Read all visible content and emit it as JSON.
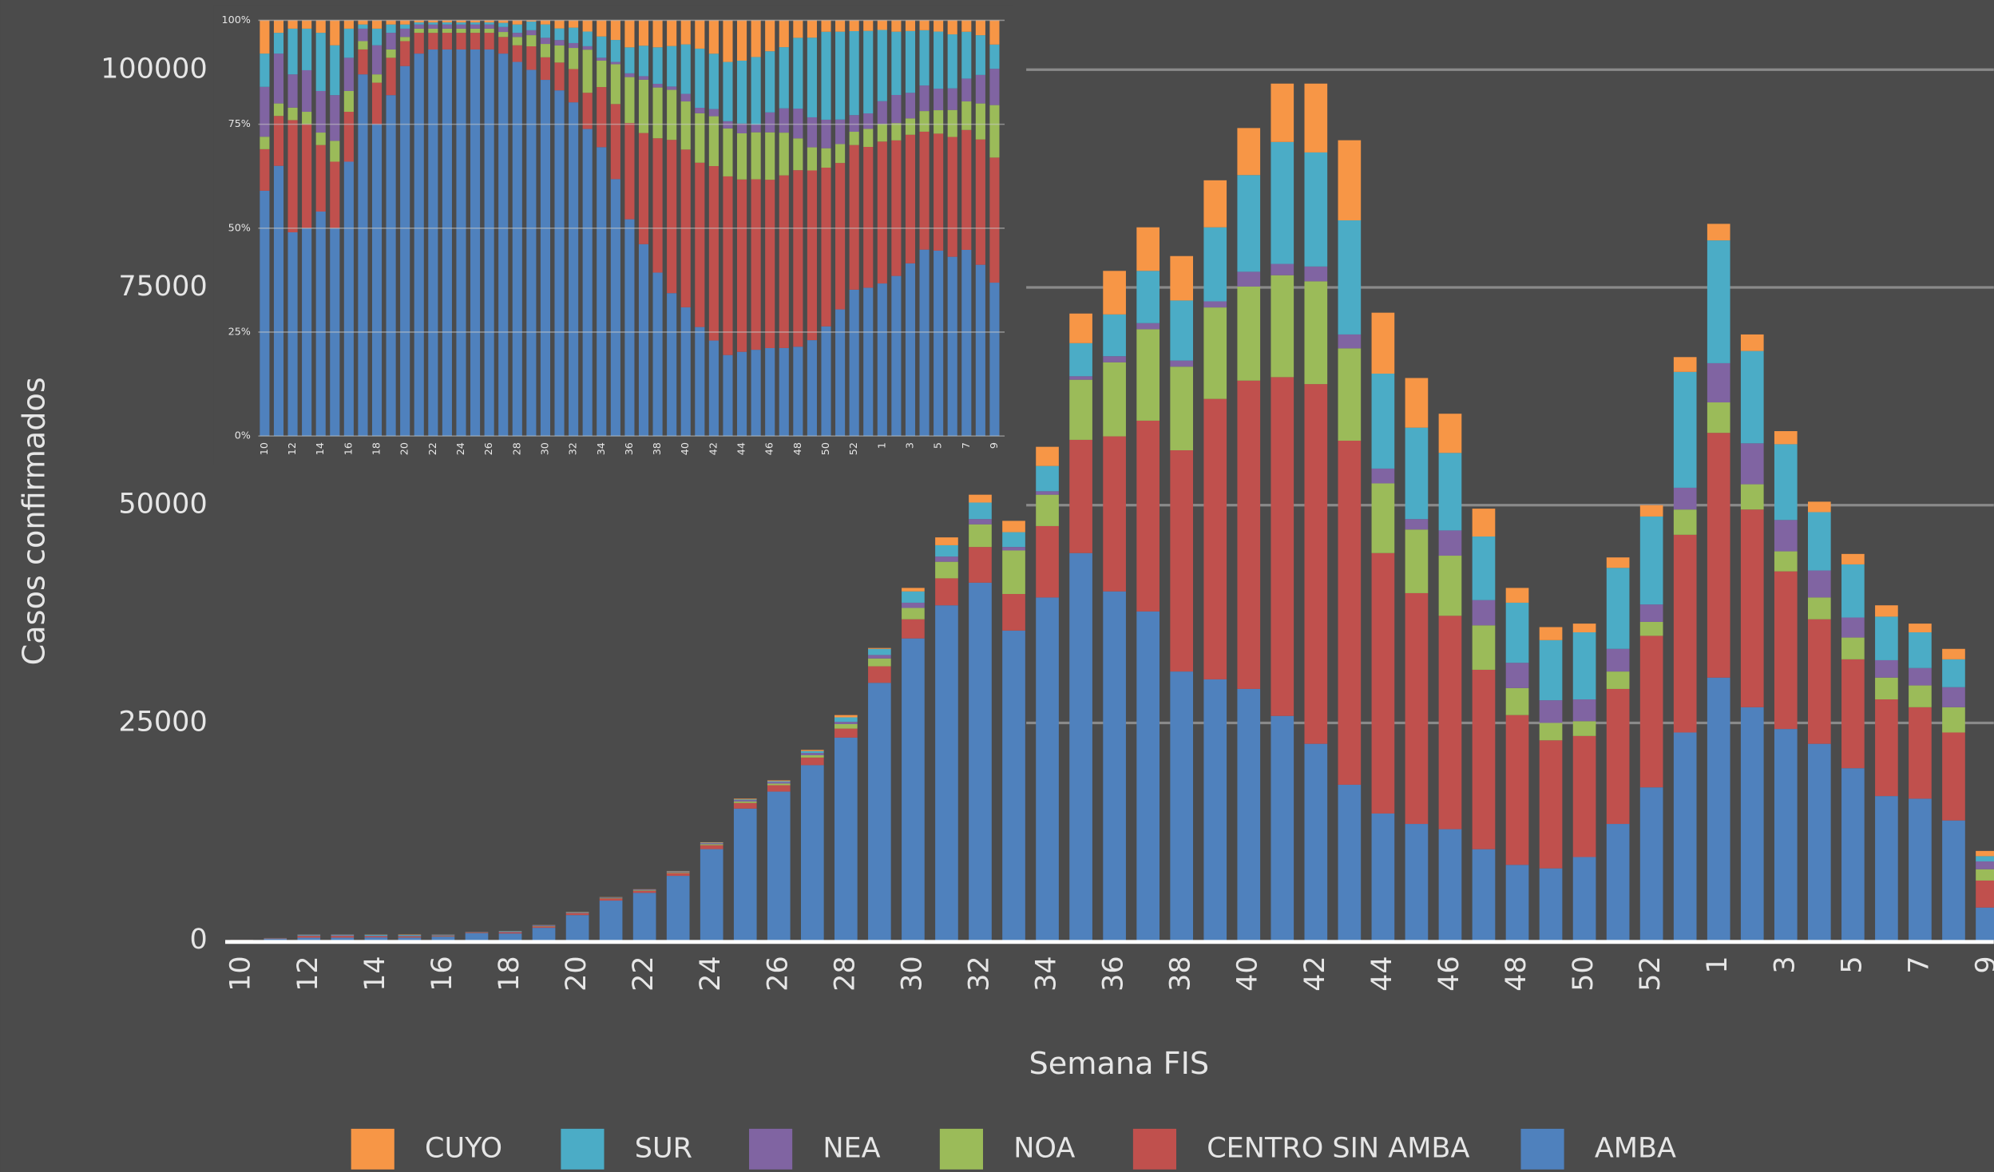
{
  "chart_data": [
    {
      "type": "bar",
      "stacking": "normal",
      "x_label": "Semana FIS",
      "y_label": "Casos confirmados",
      "categories": [
        "10",
        null,
        "12",
        null,
        "14",
        null,
        "16",
        null,
        "18",
        null,
        "20",
        null,
        "22",
        null,
        "24",
        null,
        "26",
        null,
        "28",
        null,
        "30",
        null,
        "32",
        null,
        "34",
        null,
        "36",
        null,
        "38",
        null,
        "40",
        null,
        "42",
        null,
        "44",
        null,
        "46",
        null,
        "48",
        null,
        "50",
        null,
        "52",
        null,
        "1",
        null,
        "3",
        null,
        "5",
        null,
        "7",
        null,
        "9"
      ],
      "series": [
        {
          "name": "AMBA",
          "color": "#4f81bd",
          "values": [
            59,
            195,
            343,
            350,
            378,
            350,
            462,
            870,
            825,
            1476,
            2937,
            4600,
            5487,
            7440,
            10509,
            15159,
            17112,
            20148,
            23310,
            29600,
            34700,
            38500,
            41100,
            35600,
            39400,
            44500,
            40100,
            37800,
            30900,
            30000,
            28900,
            25800,
            22600,
            17900,
            14600,
            13400,
            12800,
            10500,
            8700,
            8300,
            9600,
            13400,
            17600,
            23900,
            30200,
            26800,
            24300,
            22600,
            19800,
            16600,
            16300,
            13800,
            3800
          ]
        },
        {
          "name": "CENTRO SIN AMBA",
          "color": "#c0504d",
          "values": [
            10,
            36,
            189,
            175,
            112,
            112,
            84,
            60,
            110,
            162,
            198,
            250,
            236,
            320,
            452,
            652,
            736,
            876,
            1036,
            1900,
            2200,
            3100,
            4100,
            4200,
            8200,
            13000,
            17800,
            21900,
            25400,
            32200,
            35400,
            38900,
            41300,
            39500,
            29900,
            26500,
            24500,
            20600,
            17200,
            14700,
            13900,
            15500,
            17400,
            22700,
            28100,
            22700,
            18100,
            14300,
            12500,
            11100,
            10500,
            10100,
            3100
          ]
        },
        {
          "name": "NOA",
          "color": "#9bbb59",
          "values": [
            3,
            9,
            21,
            21,
            21,
            35,
            35,
            20,
            22,
            36,
            33,
            50,
            59,
            80,
            113,
            163,
            184,
            263,
            518,
            900,
            1300,
            1900,
            2600,
            5000,
            3600,
            6900,
            8500,
            10500,
            9600,
            10500,
            10800,
            11700,
            11800,
            10600,
            8000,
            7300,
            6900,
            5100,
            3100,
            2000,
            1700,
            2000,
            1600,
            2900,
            3500,
            2900,
            2300,
            2500,
            2500,
            2500,
            2500,
            2900,
            1300
          ]
        },
        {
          "name": "NEA",
          "color": "#8064a2",
          "values": [
            12,
            36,
            56,
            70,
            70,
            77,
            56,
            30,
            77,
            72,
            66,
            50,
            59,
            80,
            113,
            163,
            184,
            263,
            259,
            400,
            600,
            600,
            600,
            400,
            400,
            400,
            700,
            700,
            700,
            700,
            1700,
            1300,
            1700,
            1600,
            1700,
            1200,
            2900,
            2900,
            2900,
            2600,
            2500,
            2600,
            2000,
            2500,
            4500,
            4700,
            3600,
            3100,
            2300,
            2000,
            2000,
            2300,
            900
          ]
        },
        {
          "name": "SUR",
          "color": "#4bacc6",
          "values": [
            8,
            15,
            77,
            70,
            98,
            84,
            49,
            10,
            44,
            36,
            33,
            25,
            30,
            40,
            57,
            82,
            92,
            219,
            518,
            700,
            1300,
            1300,
            1900,
            1700,
            2900,
            3800,
            4800,
            6000,
            6900,
            8500,
            11100,
            14000,
            13100,
            13100,
            10900,
            10500,
            8900,
            7300,
            6900,
            6900,
            7700,
            9300,
            10100,
            13300,
            14100,
            10600,
            8700,
            6700,
            6100,
            5000,
            4100,
            3200,
            600
          ]
        },
        {
          "name": "CUYO",
          "color": "#f79646",
          "values": [
            8,
            9,
            14,
            14,
            21,
            42,
            14,
            10,
            22,
            18,
            33,
            25,
            30,
            40,
            57,
            82,
            92,
            131,
            259,
            100,
            400,
            900,
            900,
            1300,
            2200,
            3400,
            5000,
            5000,
            5100,
            5400,
            5400,
            6700,
            7900,
            9200,
            7000,
            5700,
            4500,
            3200,
            1700,
            1500,
            1000,
            1200,
            1300,
            1700,
            1900,
            1900,
            1500,
            1200,
            1200,
            1300,
            1000,
            1200,
            600
          ]
        }
      ],
      "ylim": [
        0,
        108000
      ],
      "yticks": [
        0,
        25000,
        50000,
        75000,
        100000
      ],
      "grid": true,
      "legend": "bottom"
    },
    {
      "type": "bar",
      "stacking": "percent",
      "categories": [
        "10",
        null,
        "12",
        null,
        "14",
        null,
        "16",
        null,
        "18",
        null,
        "20",
        null,
        "22",
        null,
        "24",
        null,
        "26",
        null,
        "28",
        null,
        "30",
        null,
        "32",
        null,
        "34",
        null,
        "36",
        null,
        "38",
        null,
        "40",
        null,
        "42",
        null,
        "44",
        null,
        "46",
        null,
        "48",
        null,
        "50",
        null,
        "52",
        null,
        "1",
        null,
        "3",
        null,
        "5",
        null,
        "7",
        null,
        "9"
      ],
      "ylim": [
        0,
        100
      ],
      "yticks": [
        {
          "value": 0,
          "label": "0%"
        },
        {
          "value": 25,
          "label": "25%"
        },
        {
          "value": 50,
          "label": "50%"
        },
        {
          "value": 75,
          "label": "75%"
        },
        {
          "value": 100,
          "label": "100%"
        }
      ],
      "grid": true
    }
  ]
}
